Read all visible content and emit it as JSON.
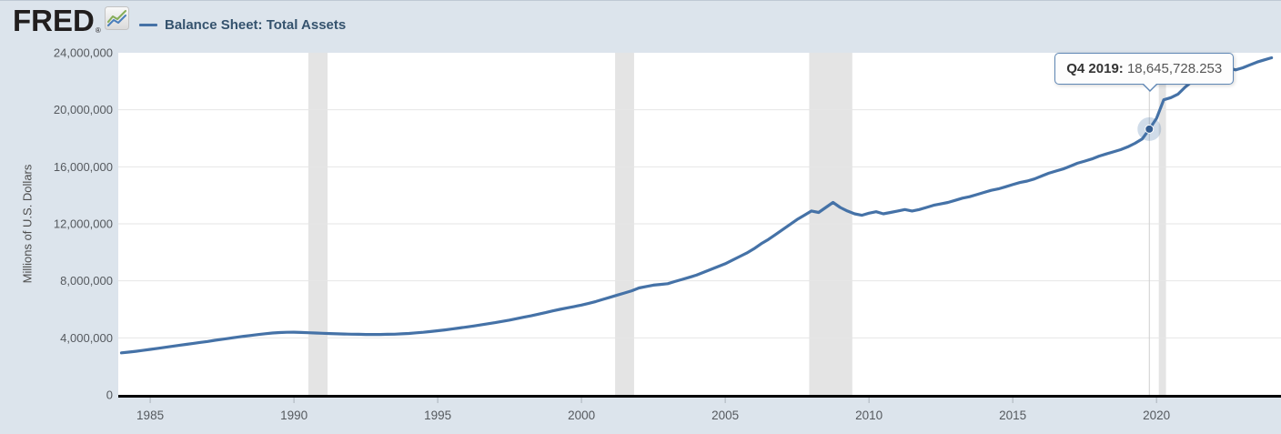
{
  "header": {
    "logo_text": "FRED",
    "logo_registered": "®",
    "legend": {
      "series_label": "Balance Sheet: Total Assets",
      "series_color": "#4572a7"
    }
  },
  "tooltip": {
    "label": "Q4 2019:",
    "value": "18,645,728.253"
  },
  "chart_data": {
    "type": "line",
    "title": "Balance Sheet: Total Assets",
    "xlabel": "",
    "ylabel": "Millions of U.S. Dollars",
    "xlim": [
      1983.89,
      2024.33
    ],
    "ylim": [
      0,
      24000000
    ],
    "grid": true,
    "legend_position": "top-left",
    "line_color": "#4572a7",
    "recession_band_color": "#e4e4e4",
    "plot_bg": "#ffffff",
    "x_ticks": [
      1985,
      1990,
      1995,
      2000,
      2005,
      2010,
      2015,
      2020
    ],
    "x_tick_labels": [
      "1985",
      "1990",
      "1995",
      "2000",
      "2005",
      "2010",
      "2015",
      "2020"
    ],
    "y_ticks": [
      0,
      4000000,
      8000000,
      12000000,
      16000000,
      20000000,
      24000000
    ],
    "y_tick_labels": [
      "0",
      "4,000,000",
      "8,000,000",
      "12,000,000",
      "16,000,000",
      "20,000,000",
      "24,000,000"
    ],
    "recession_bands": [
      [
        1990.5,
        1991.17
      ],
      [
        2001.17,
        2001.83
      ],
      [
        2007.92,
        2009.42
      ],
      [
        2020.08,
        2020.33
      ]
    ],
    "highlight": {
      "x": 2019.75,
      "y": 18645728.253,
      "label": "Q4 2019:",
      "value_text": "18,645,728.253"
    },
    "series": [
      {
        "name": "Balance Sheet: Total Assets",
        "points": [
          [
            1984.0,
            2950000
          ],
          [
            1984.25,
            3000000
          ],
          [
            1984.5,
            3060000
          ],
          [
            1984.75,
            3120000
          ],
          [
            1985.0,
            3190000
          ],
          [
            1985.25,
            3260000
          ],
          [
            1985.5,
            3330000
          ],
          [
            1985.75,
            3400000
          ],
          [
            1986.0,
            3470000
          ],
          [
            1986.25,
            3540000
          ],
          [
            1986.5,
            3610000
          ],
          [
            1986.75,
            3680000
          ],
          [
            1987.0,
            3750000
          ],
          [
            1987.25,
            3830000
          ],
          [
            1987.5,
            3900000
          ],
          [
            1987.75,
            3970000
          ],
          [
            1988.0,
            4040000
          ],
          [
            1988.25,
            4110000
          ],
          [
            1988.5,
            4170000
          ],
          [
            1988.75,
            4230000
          ],
          [
            1989.0,
            4290000
          ],
          [
            1989.25,
            4340000
          ],
          [
            1989.5,
            4370000
          ],
          [
            1989.75,
            4390000
          ],
          [
            1990.0,
            4400000
          ],
          [
            1990.25,
            4380000
          ],
          [
            1990.5,
            4360000
          ],
          [
            1990.75,
            4340000
          ],
          [
            1991.0,
            4320000
          ],
          [
            1991.25,
            4300000
          ],
          [
            1991.5,
            4280000
          ],
          [
            1991.75,
            4270000
          ],
          [
            1992.0,
            4260000
          ],
          [
            1992.25,
            4250000
          ],
          [
            1992.5,
            4240000
          ],
          [
            1992.75,
            4240000
          ],
          [
            1993.0,
            4240000
          ],
          [
            1993.25,
            4250000
          ],
          [
            1993.5,
            4260000
          ],
          [
            1993.75,
            4280000
          ],
          [
            1994.0,
            4310000
          ],
          [
            1994.25,
            4350000
          ],
          [
            1994.5,
            4390000
          ],
          [
            1994.75,
            4440000
          ],
          [
            1995.0,
            4500000
          ],
          [
            1995.25,
            4560000
          ],
          [
            1995.5,
            4620000
          ],
          [
            1995.75,
            4690000
          ],
          [
            1996.0,
            4760000
          ],
          [
            1996.25,
            4830000
          ],
          [
            1996.5,
            4910000
          ],
          [
            1996.75,
            4990000
          ],
          [
            1997.0,
            5070000
          ],
          [
            1997.25,
            5160000
          ],
          [
            1997.5,
            5250000
          ],
          [
            1997.75,
            5350000
          ],
          [
            1998.0,
            5450000
          ],
          [
            1998.25,
            5550000
          ],
          [
            1998.5,
            5660000
          ],
          [
            1998.75,
            5770000
          ],
          [
            1999.0,
            5890000
          ],
          [
            1999.25,
            6000000
          ],
          [
            1999.5,
            6100000
          ],
          [
            1999.75,
            6200000
          ],
          [
            2000.0,
            6300000
          ],
          [
            2000.25,
            6420000
          ],
          [
            2000.5,
            6550000
          ],
          [
            2000.75,
            6700000
          ],
          [
            2001.0,
            6850000
          ],
          [
            2001.25,
            7000000
          ],
          [
            2001.5,
            7150000
          ],
          [
            2001.75,
            7300000
          ],
          [
            2002.0,
            7500000
          ],
          [
            2002.25,
            7600000
          ],
          [
            2002.5,
            7700000
          ],
          [
            2002.75,
            7750000
          ],
          [
            2003.0,
            7800000
          ],
          [
            2003.25,
            7950000
          ],
          [
            2003.5,
            8100000
          ],
          [
            2003.75,
            8250000
          ],
          [
            2004.0,
            8400000
          ],
          [
            2004.25,
            8600000
          ],
          [
            2004.5,
            8800000
          ],
          [
            2004.75,
            9000000
          ],
          [
            2005.0,
            9200000
          ],
          [
            2005.25,
            9450000
          ],
          [
            2005.5,
            9700000
          ],
          [
            2005.75,
            9950000
          ],
          [
            2006.0,
            10250000
          ],
          [
            2006.25,
            10600000
          ],
          [
            2006.5,
            10900000
          ],
          [
            2006.75,
            11250000
          ],
          [
            2007.0,
            11600000
          ],
          [
            2007.25,
            11950000
          ],
          [
            2007.5,
            12300000
          ],
          [
            2007.75,
            12600000
          ],
          [
            2008.0,
            12900000
          ],
          [
            2008.25,
            12800000
          ],
          [
            2008.5,
            13150000
          ],
          [
            2008.75,
            13500000
          ],
          [
            2009.0,
            13150000
          ],
          [
            2009.25,
            12900000
          ],
          [
            2009.5,
            12700000
          ],
          [
            2009.75,
            12600000
          ],
          [
            2010.0,
            12750000
          ],
          [
            2010.25,
            12850000
          ],
          [
            2010.5,
            12700000
          ],
          [
            2010.75,
            12800000
          ],
          [
            2011.0,
            12900000
          ],
          [
            2011.25,
            13000000
          ],
          [
            2011.5,
            12900000
          ],
          [
            2011.75,
            13000000
          ],
          [
            2012.0,
            13150000
          ],
          [
            2012.25,
            13300000
          ],
          [
            2012.5,
            13400000
          ],
          [
            2012.75,
            13500000
          ],
          [
            2013.0,
            13650000
          ],
          [
            2013.25,
            13800000
          ],
          [
            2013.5,
            13900000
          ],
          [
            2013.75,
            14050000
          ],
          [
            2014.0,
            14200000
          ],
          [
            2014.25,
            14350000
          ],
          [
            2014.5,
            14450000
          ],
          [
            2014.75,
            14600000
          ],
          [
            2015.0,
            14750000
          ],
          [
            2015.25,
            14900000
          ],
          [
            2015.5,
            15000000
          ],
          [
            2015.75,
            15150000
          ],
          [
            2016.0,
            15350000
          ],
          [
            2016.25,
            15550000
          ],
          [
            2016.5,
            15700000
          ],
          [
            2016.75,
            15850000
          ],
          [
            2017.0,
            16050000
          ],
          [
            2017.25,
            16250000
          ],
          [
            2017.5,
            16400000
          ],
          [
            2017.75,
            16550000
          ],
          [
            2018.0,
            16750000
          ],
          [
            2018.25,
            16900000
          ],
          [
            2018.5,
            17050000
          ],
          [
            2018.75,
            17200000
          ],
          [
            2019.0,
            17400000
          ],
          [
            2019.25,
            17650000
          ],
          [
            2019.5,
            17950000
          ],
          [
            2019.75,
            18645728.253
          ],
          [
            2020.0,
            19400000
          ],
          [
            2020.25,
            20700000
          ],
          [
            2020.5,
            20850000
          ],
          [
            2020.75,
            21100000
          ],
          [
            2021.0,
            21600000
          ],
          [
            2021.25,
            22000000
          ],
          [
            2021.5,
            22350000
          ],
          [
            2021.75,
            22650000
          ],
          [
            2022.0,
            22900000
          ],
          [
            2022.25,
            23050000
          ],
          [
            2022.5,
            22950000
          ],
          [
            2022.75,
            22800000
          ],
          [
            2023.0,
            22950000
          ],
          [
            2023.25,
            23150000
          ],
          [
            2023.5,
            23350000
          ],
          [
            2023.75,
            23500000
          ],
          [
            2024.0,
            23650000
          ]
        ]
      }
    ]
  }
}
